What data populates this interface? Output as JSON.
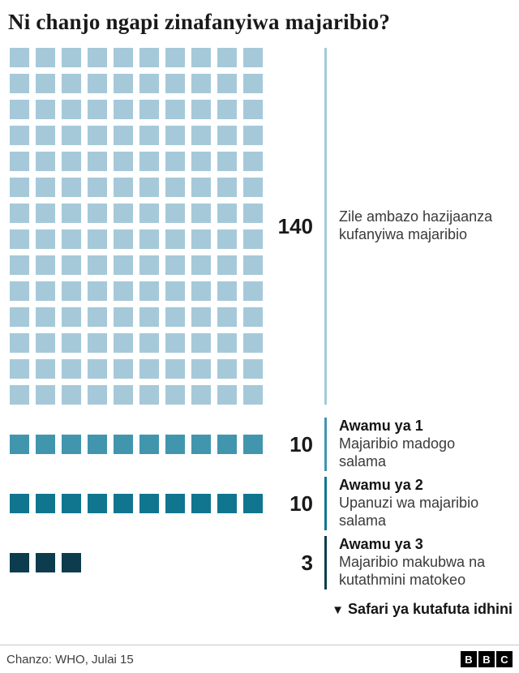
{
  "title": "Ni chanjo ngapi zinafanyiwa majaribio?",
  "chart_data": {
    "type": "waffle",
    "groups": [
      {
        "count": 140,
        "cols": 10,
        "color": "#a5c9d9",
        "desc": "Zile ambazo hazijaanza kufanyiwa majaribio"
      },
      {
        "count": 10,
        "cols": 10,
        "color": "#4196ae",
        "phase": "Awamu ya 1",
        "desc": "Majaribio madogo salama"
      },
      {
        "count": 10,
        "cols": 10,
        "color": "#10768f",
        "phase": "Awamu ya 2",
        "desc": "Upanuzi wa majaribio salama"
      },
      {
        "count": 3,
        "cols": 10,
        "color": "#0c3c4d",
        "phase": "Awamu ya 3",
        "desc": "Majaribio makubwa na kutathmini matokeo"
      }
    ],
    "annotation_icon": "▼",
    "annotation": "Safari ya kutafuta idhini"
  },
  "footer": {
    "source": "Chanzo: WHO, Julai 15",
    "logo_letters": [
      "B",
      "B",
      "C"
    ]
  }
}
